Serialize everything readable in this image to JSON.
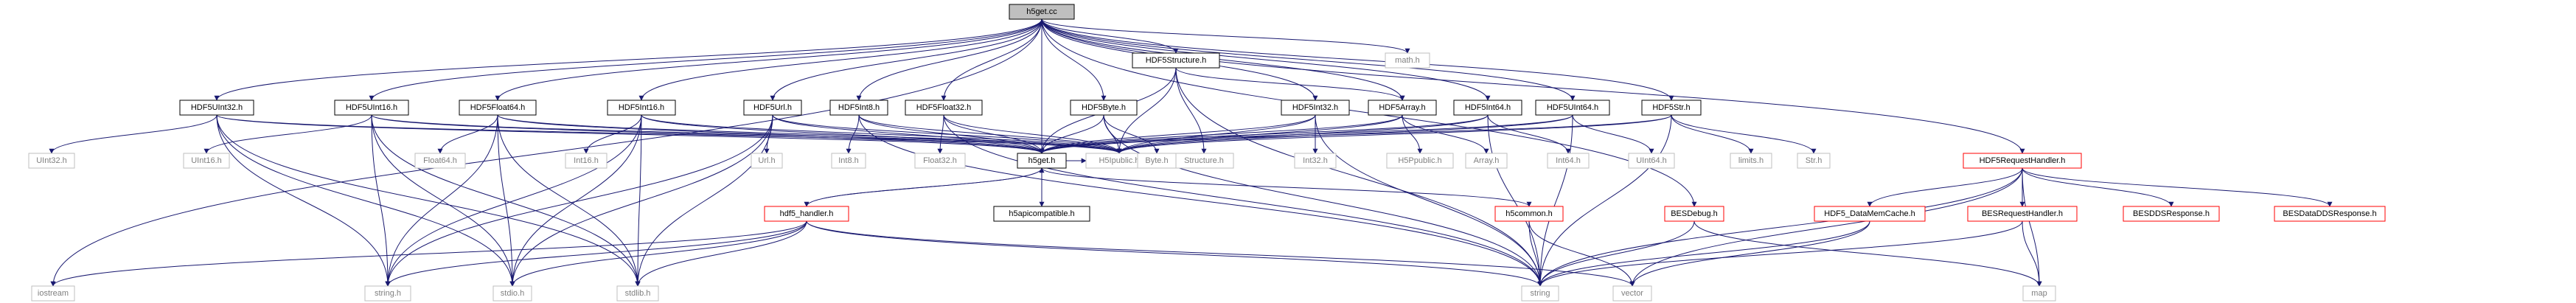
{
  "graph": {
    "root": "h5get.cc",
    "colors": {
      "root_fill": "#bfbfbf",
      "node_fill": "#ffffff",
      "node_border": "#000000",
      "external_border": "#bfbfbf",
      "external_text": "#7f7f7f",
      "truncated_border": "#ff0000",
      "edge": "#191970",
      "text": "#000000"
    },
    "nodes": [
      {
        "id": "h5get_cc",
        "label": "h5get.cc",
        "style": "root"
      },
      {
        "id": "iostream",
        "label": "iostream",
        "style": "external"
      },
      {
        "id": "HDF5UInt32_h",
        "label": "HDF5UInt32.h",
        "style": "normal"
      },
      {
        "id": "HDF5UInt16_h",
        "label": "HDF5UInt16.h",
        "style": "normal"
      },
      {
        "id": "HDF5Float64_h",
        "label": "HDF5Float64.h",
        "style": "normal"
      },
      {
        "id": "HDF5Int16_h",
        "label": "HDF5Int16.h",
        "style": "normal"
      },
      {
        "id": "HDF5Url_h",
        "label": "HDF5Url.h",
        "style": "normal"
      },
      {
        "id": "HDF5Int8_h",
        "label": "HDF5Int8.h",
        "style": "normal"
      },
      {
        "id": "HDF5Float32_h",
        "label": "HDF5Float32.h",
        "style": "normal"
      },
      {
        "id": "HDF5Structure_h",
        "label": "HDF5Structure.h",
        "style": "normal"
      },
      {
        "id": "HDF5Byte_h",
        "label": "HDF5Byte.h",
        "style": "normal"
      },
      {
        "id": "HDF5Int32_h",
        "label": "HDF5Int32.h",
        "style": "normal"
      },
      {
        "id": "HDF5Array_h",
        "label": "HDF5Array.h",
        "style": "normal"
      },
      {
        "id": "HDF5Int64_h",
        "label": "HDF5Int64.h",
        "style": "normal"
      },
      {
        "id": "HDF5UInt64_h",
        "label": "HDF5UInt64.h",
        "style": "normal"
      },
      {
        "id": "HDF5Str_h",
        "label": "HDF5Str.h",
        "style": "normal"
      },
      {
        "id": "math_h",
        "label": "math.h",
        "style": "external"
      },
      {
        "id": "HDF5RequestHandler_h",
        "label": "HDF5RequestHandler.h",
        "style": "truncated"
      },
      {
        "id": "UInt32_h",
        "label": "UInt32.h",
        "style": "external"
      },
      {
        "id": "UInt16_h",
        "label": "UInt16.h",
        "style": "external"
      },
      {
        "id": "Float64_h",
        "label": "Float64.h",
        "style": "external"
      },
      {
        "id": "Int16_h",
        "label": "Int16.h",
        "style": "external"
      },
      {
        "id": "Url_h",
        "label": "Url.h",
        "style": "external"
      },
      {
        "id": "Int8_h",
        "label": "Int8.h",
        "style": "external"
      },
      {
        "id": "Float32_h",
        "label": "Float32.h",
        "style": "external"
      },
      {
        "id": "h5get_h",
        "label": "h5get.h",
        "style": "normal"
      },
      {
        "id": "HDF5CFUtil_h",
        "label": "H5Ipublic.h",
        "style": "external"
      },
      {
        "id": "Structure_h",
        "label": "Structure.h",
        "style": "external"
      },
      {
        "id": "Byte_h",
        "label": "Byte.h",
        "style": "external"
      },
      {
        "id": "Int32_h",
        "label": "Int32.h",
        "style": "external"
      },
      {
        "id": "H5Ppublic_h",
        "label": "H5Ppublic.h",
        "style": "external"
      },
      {
        "id": "Array_h",
        "label": "Array.h",
        "style": "external"
      },
      {
        "id": "Int64_h",
        "label": "Int64.h",
        "style": "external"
      },
      {
        "id": "UInt64_h",
        "label": "UInt64.h",
        "style": "external"
      },
      {
        "id": "limits_h",
        "label": "limits.h",
        "style": "external"
      },
      {
        "id": "Str_h",
        "label": "Str.h",
        "style": "external"
      },
      {
        "id": "h5apicompatible_h",
        "label": "h5apicompatible.h",
        "style": "normal"
      },
      {
        "id": "hdf5_handler_h",
        "label": "hdf5_handler.h",
        "style": "truncated"
      },
      {
        "id": "h5common_h",
        "label": "h5common.h",
        "style": "truncated"
      },
      {
        "id": "HDF5_DataMemCache_h",
        "label": "HDF5_DataMemCache.h",
        "style": "truncated"
      },
      {
        "id": "BESDebug_h",
        "label": "BESDebug.h",
        "style": "truncated"
      },
      {
        "id": "BESRequestHandler_h",
        "label": "BESRequestHandler.h",
        "style": "truncated"
      },
      {
        "id": "BESDDSResponse_h",
        "label": "BESDDSResponse.h",
        "style": "truncated"
      },
      {
        "id": "BESDataDDSResponse_h",
        "label": "BESDataDDSResponse.h",
        "style": "truncated"
      },
      {
        "id": "string_h",
        "label": "string.h",
        "style": "external"
      },
      {
        "id": "stdio_h",
        "label": "stdio.h",
        "style": "external"
      },
      {
        "id": "stdlib_h",
        "label": "stdlib.h",
        "style": "external"
      },
      {
        "id": "string",
        "label": "string",
        "style": "external"
      },
      {
        "id": "vector",
        "label": "vector",
        "style": "external"
      },
      {
        "id": "map",
        "label": "map",
        "style": "external"
      }
    ],
    "edges": [
      [
        "h5get_cc",
        "iostream"
      ],
      [
        "h5get_cc",
        "HDF5UInt32_h"
      ],
      [
        "h5get_cc",
        "HDF5UInt16_h"
      ],
      [
        "h5get_cc",
        "HDF5Float64_h"
      ],
      [
        "h5get_cc",
        "HDF5Int16_h"
      ],
      [
        "h5get_cc",
        "HDF5Url_h"
      ],
      [
        "h5get_cc",
        "HDF5Int8_h"
      ],
      [
        "h5get_cc",
        "HDF5Float32_h"
      ],
      [
        "h5get_cc",
        "HDF5Structure_h"
      ],
      [
        "h5get_cc",
        "HDF5Byte_h"
      ],
      [
        "h5get_cc",
        "HDF5Int32_h"
      ],
      [
        "h5get_cc",
        "HDF5Array_h"
      ],
      [
        "h5get_cc",
        "HDF5Int64_h"
      ],
      [
        "h5get_cc",
        "HDF5UInt64_h"
      ],
      [
        "h5get_cc",
        "HDF5Str_h"
      ],
      [
        "h5get_cc",
        "math_h"
      ],
      [
        "h5get_cc",
        "HDF5RequestHandler_h"
      ],
      [
        "h5get_cc",
        "h5get_h"
      ],
      [
        "h5get_cc",
        "BESDebug_h"
      ],
      [
        "HDF5UInt32_h",
        "UInt32_h"
      ],
      [
        "HDF5UInt32_h",
        "h5get_h"
      ],
      [
        "HDF5UInt32_h",
        "HDF5CFUtil_h"
      ],
      [
        "HDF5UInt32_h",
        "string_h"
      ],
      [
        "HDF5UInt32_h",
        "stdio_h"
      ],
      [
        "HDF5UInt32_h",
        "stdlib_h"
      ],
      [
        "HDF5UInt16_h",
        "UInt16_h"
      ],
      [
        "HDF5UInt16_h",
        "h5get_h"
      ],
      [
        "HDF5UInt16_h",
        "HDF5CFUtil_h"
      ],
      [
        "HDF5UInt16_h",
        "string_h"
      ],
      [
        "HDF5UInt16_h",
        "stdio_h"
      ],
      [
        "HDF5UInt16_h",
        "stdlib_h"
      ],
      [
        "HDF5Float64_h",
        "Float64_h"
      ],
      [
        "HDF5Float64_h",
        "h5get_h"
      ],
      [
        "HDF5Float64_h",
        "HDF5CFUtil_h"
      ],
      [
        "HDF5Float64_h",
        "string_h"
      ],
      [
        "HDF5Float64_h",
        "stdio_h"
      ],
      [
        "HDF5Float64_h",
        "stdlib_h"
      ],
      [
        "HDF5Int16_h",
        "Int16_h"
      ],
      [
        "HDF5Int16_h",
        "h5get_h"
      ],
      [
        "HDF5Int16_h",
        "HDF5CFUtil_h"
      ],
      [
        "HDF5Int16_h",
        "string_h"
      ],
      [
        "HDF5Int16_h",
        "stdio_h"
      ],
      [
        "HDF5Int16_h",
        "stdlib_h"
      ],
      [
        "HDF5Url_h",
        "Url_h"
      ],
      [
        "HDF5Url_h",
        "h5get_h"
      ],
      [
        "HDF5Url_h",
        "HDF5CFUtil_h"
      ],
      [
        "HDF5Url_h",
        "string_h"
      ],
      [
        "HDF5Url_h",
        "stdio_h"
      ],
      [
        "HDF5Url_h",
        "stdlib_h"
      ],
      [
        "HDF5Int8_h",
        "Int8_h"
      ],
      [
        "HDF5Int8_h",
        "h5get_h"
      ],
      [
        "HDF5Int8_h",
        "HDF5CFUtil_h"
      ],
      [
        "HDF5Int8_h",
        "string"
      ],
      [
        "HDF5Float32_h",
        "Float32_h"
      ],
      [
        "HDF5Float32_h",
        "h5get_h"
      ],
      [
        "HDF5Float32_h",
        "HDF5CFUtil_h"
      ],
      [
        "HDF5Float32_h",
        "string"
      ],
      [
        "HDF5Structure_h",
        "Structure_h"
      ],
      [
        "HDF5Structure_h",
        "h5get_h"
      ],
      [
        "HDF5Structure_h",
        "HDF5CFUtil_h"
      ],
      [
        "HDF5Structure_h",
        "string"
      ],
      [
        "HDF5Structure_h",
        "HDF5Array_h"
      ],
      [
        "HDF5Byte_h",
        "Byte_h"
      ],
      [
        "HDF5Byte_h",
        "h5get_h"
      ],
      [
        "HDF5Byte_h",
        "HDF5CFUtil_h"
      ],
      [
        "HDF5Byte_h",
        "string"
      ],
      [
        "HDF5Int32_h",
        "Int32_h"
      ],
      [
        "HDF5Int32_h",
        "h5get_h"
      ],
      [
        "HDF5Int32_h",
        "HDF5CFUtil_h"
      ],
      [
        "HDF5Int32_h",
        "string"
      ],
      [
        "HDF5Array_h",
        "H5Ppublic_h"
      ],
      [
        "HDF5Array_h",
        "Array_h"
      ],
      [
        "HDF5Array_h",
        "h5get_h"
      ],
      [
        "HDF5Array_h",
        "HDF5CFUtil_h"
      ],
      [
        "HDF5Int64_h",
        "Int64_h"
      ],
      [
        "HDF5Int64_h",
        "h5get_h"
      ],
      [
        "HDF5Int64_h",
        "HDF5CFUtil_h"
      ],
      [
        "HDF5Int64_h",
        "string"
      ],
      [
        "HDF5UInt64_h",
        "UInt64_h"
      ],
      [
        "HDF5UInt64_h",
        "h5get_h"
      ],
      [
        "HDF5UInt64_h",
        "HDF5CFUtil_h"
      ],
      [
        "HDF5UInt64_h",
        "string"
      ],
      [
        "HDF5Str_h",
        "limits_h"
      ],
      [
        "HDF5Str_h",
        "Str_h"
      ],
      [
        "HDF5Str_h",
        "h5get_h"
      ],
      [
        "HDF5Str_h",
        "HDF5CFUtil_h"
      ],
      [
        "HDF5Str_h",
        "string"
      ],
      [
        "h5get_h",
        "h5apicompatible_h"
      ],
      [
        "h5get_h",
        "hdf5_handler_h"
      ],
      [
        "h5get_h",
        "h5common_h"
      ],
      [
        "h5get_h",
        "HDF5CFUtil_h"
      ],
      [
        "hdf5_handler_h",
        "h5get_h"
      ],
      [
        "hdf5_handler_h",
        "iostream"
      ],
      [
        "hdf5_handler_h",
        "string_h"
      ],
      [
        "hdf5_handler_h",
        "stdio_h"
      ],
      [
        "hdf5_handler_h",
        "stdlib_h"
      ],
      [
        "hdf5_handler_h",
        "string"
      ],
      [
        "hdf5_handler_h",
        "vector"
      ],
      [
        "h5common_h",
        "string"
      ],
      [
        "h5common_h",
        "vector"
      ],
      [
        "HDF5RequestHandler_h",
        "HDF5_DataMemCache_h"
      ],
      [
        "HDF5RequestHandler_h",
        "BESRequestHandler_h"
      ],
      [
        "HDF5RequestHandler_h",
        "BESDDSResponse_h"
      ],
      [
        "HDF5RequestHandler_h",
        "BESDataDDSResponse_h"
      ],
      [
        "HDF5RequestHandler_h",
        "string"
      ],
      [
        "HDF5RequestHandler_h",
        "vector"
      ],
      [
        "HDF5RequestHandler_h",
        "map"
      ],
      [
        "HDF5_DataMemCache_h",
        "string"
      ],
      [
        "HDF5_DataMemCache_h",
        "vector"
      ],
      [
        "BESRequestHandler_h",
        "string"
      ],
      [
        "BESRequestHandler_h",
        "map"
      ],
      [
        "BESDebug_h",
        "string"
      ],
      [
        "BESDebug_h",
        "map"
      ]
    ]
  }
}
